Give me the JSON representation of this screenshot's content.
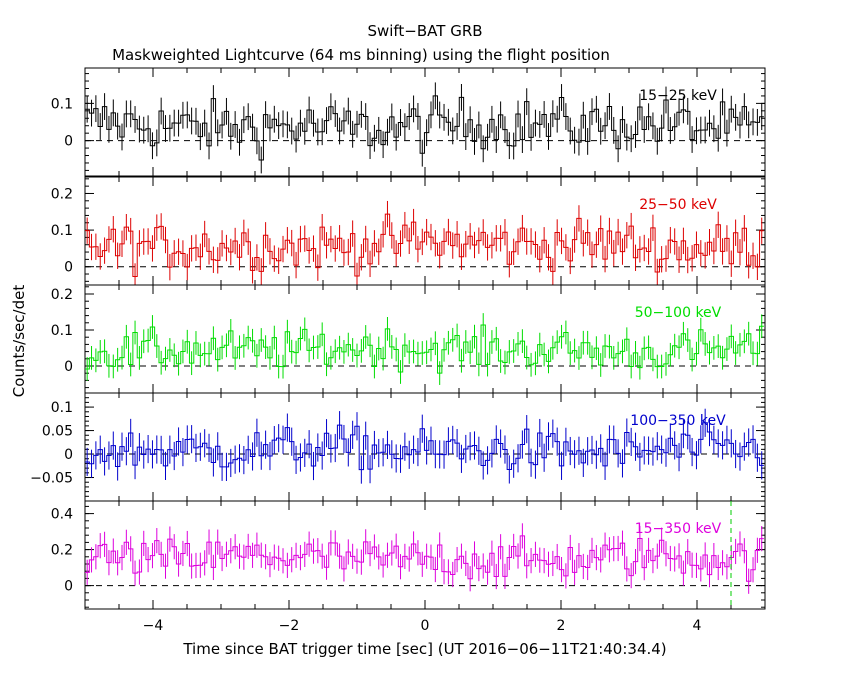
{
  "chart_data": {
    "type": "line",
    "title": "Swift−BAT GRB",
    "subtitle": "Maskweighted Lightcurve (64 ms binning) using the flight position",
    "xlabel": "Time since BAT trigger time [sec] (UT 2016−06−11T21:40:34.4)",
    "ylabel": "Counts/sec/det",
    "xlim": [
      -5.0,
      5.0
    ],
    "x_ticks": [
      -4,
      -2,
      0,
      2,
      4
    ],
    "x_tick_labels": [
      "−4",
      "−2",
      "0",
      "2",
      "4"
    ],
    "bin_width_sec": 0.064,
    "panels": [
      {
        "band": "15−25 keV",
        "color": "#000000",
        "ylim": [
          -0.095,
          0.195
        ],
        "y_ticks": [
          0,
          0.1
        ],
        "y_tick_labels": [
          "0",
          "0.1"
        ],
        "error": 0.036,
        "baseline": 0.04,
        "jitter": 0.034
      },
      {
        "band": "25−50 keV",
        "color": "#dd0000",
        "ylim": [
          -0.05,
          0.245
        ],
        "y_ticks": [
          0,
          0.1,
          0.2
        ],
        "y_tick_labels": [
          "0",
          "0.1",
          "0.2"
        ],
        "error": 0.036,
        "baseline": 0.06,
        "jitter": 0.032
      },
      {
        "band": "50−100 keV",
        "color": "#00dd00",
        "ylim": [
          -0.075,
          0.225
        ],
        "y_ticks": [
          0,
          0.1,
          0.2
        ],
        "y_tick_labels": [
          "0",
          "0.1",
          "0.2"
        ],
        "error": 0.033,
        "baseline": 0.045,
        "jitter": 0.027
      },
      {
        "band": "100−350 keV",
        "color": "#0000cc",
        "ylim": [
          -0.1,
          0.13
        ],
        "y_ticks": [
          -0.05,
          0,
          0.05,
          0.1
        ],
        "y_tick_labels": [
          "−0.05",
          "0",
          "0.05",
          "0.1"
        ],
        "error": 0.03,
        "baseline": 0.008,
        "jitter": 0.022
      },
      {
        "band": "15−350 keV",
        "color": "#dd00dd",
        "ylim": [
          -0.13,
          0.47
        ],
        "y_ticks": [
          0,
          0.2,
          0.4
        ],
        "y_tick_labels": [
          "0",
          "0.2",
          "0.4"
        ],
        "error": 0.07,
        "baseline": 0.15,
        "jitter": 0.055
      }
    ],
    "marker_line": {
      "x": 4.5,
      "color": "#00cc00",
      "style": "dashed"
    },
    "zero_line": "dashed"
  }
}
